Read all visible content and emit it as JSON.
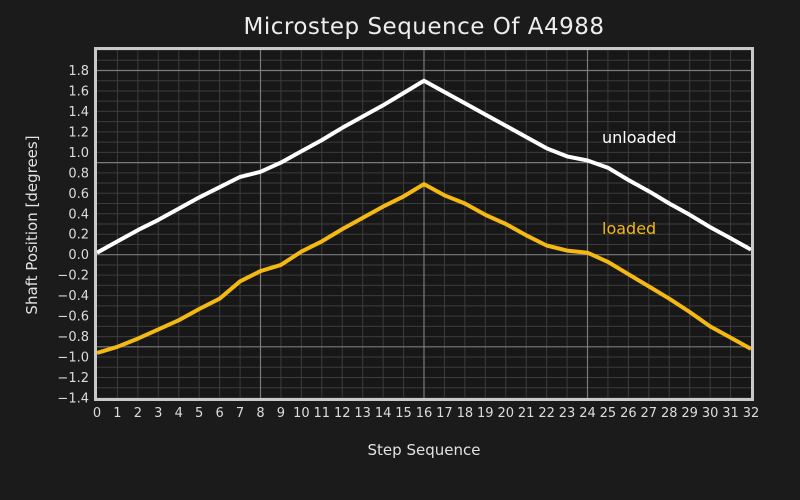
{
  "chart_data": {
    "type": "line",
    "title": "Microstep Sequence Of A4988",
    "xlabel": "Step Sequence",
    "ylabel": "Shaft Position [degrees]",
    "xlim": [
      0,
      32
    ],
    "ylim": [
      -1.4,
      2.0
    ],
    "grid": {
      "x_minor_step": 1,
      "x_major_lines": [
        8,
        16,
        24
      ],
      "y_minor_step": 0.1,
      "y_major_lines": [
        -0.9,
        0.0,
        0.9,
        1.8
      ],
      "minor_color": "#3c3c3c",
      "major_color": "#7b7b7b",
      "frame_color": "#c9c9c9"
    },
    "x_ticks": [
      0,
      1,
      2,
      3,
      4,
      5,
      6,
      7,
      8,
      9,
      10,
      11,
      12,
      13,
      14,
      15,
      16,
      17,
      18,
      19,
      20,
      21,
      22,
      23,
      24,
      25,
      26,
      27,
      28,
      29,
      30,
      31,
      32
    ],
    "x_tick_labels": [
      "0",
      "1",
      "2",
      "3",
      "4",
      "5",
      "6",
      "7",
      "8",
      "9",
      "10",
      "11",
      "12",
      "13",
      "14",
      "15",
      "16",
      "17",
      "18",
      "19",
      "20",
      "21",
      "22",
      "23",
      "24",
      "25",
      "26",
      "27",
      "28",
      "29",
      "30",
      "31",
      "32"
    ],
    "y_tick_values": [
      1.8,
      1.6,
      1.4,
      1.2,
      1.0,
      0.8,
      0.6,
      0.4,
      0.2,
      0.0,
      -0.2,
      -0.4,
      -0.6,
      -0.8,
      -1.0,
      -1.2,
      -1.4
    ],
    "y_tick_labels": [
      "1.8",
      "1.6",
      "1.4",
      "1.2",
      "1.0",
      "0.8",
      "0.6",
      "0.4",
      "0.2",
      "0.0",
      "−0.2",
      "−0.4",
      "−0.6",
      "−0.8",
      "−1.0",
      "−1.2",
      "−1.4"
    ],
    "x": [
      0,
      1,
      2,
      3,
      4,
      5,
      6,
      7,
      8,
      9,
      10,
      11,
      12,
      13,
      14,
      15,
      16,
      17,
      18,
      19,
      20,
      21,
      22,
      23,
      24,
      25,
      26,
      27,
      28,
      29,
      30,
      31,
      32
    ],
    "series": [
      {
        "name": "unloaded",
        "color": "#ffffff",
        "values": [
          0.02,
          0.13,
          0.24,
          0.34,
          0.45,
          0.56,
          0.66,
          0.76,
          0.81,
          0.9,
          1.01,
          1.12,
          1.24,
          1.35,
          1.46,
          1.58,
          1.7,
          1.59,
          1.48,
          1.37,
          1.26,
          1.15,
          1.04,
          0.96,
          0.92,
          0.85,
          0.73,
          0.62,
          0.5,
          0.39,
          0.27,
          0.16,
          0.05
        ]
      },
      {
        "name": "loaded",
        "color": "#f4b912",
        "values": [
          -0.96,
          -0.9,
          -0.82,
          -0.73,
          -0.64,
          -0.53,
          -0.43,
          -0.26,
          -0.16,
          -0.1,
          0.03,
          0.13,
          0.25,
          0.36,
          0.47,
          0.57,
          0.69,
          0.58,
          0.5,
          0.39,
          0.3,
          0.19,
          0.09,
          0.04,
          0.02,
          -0.07,
          -0.19,
          -0.31,
          -0.43,
          -0.56,
          -0.7,
          -0.81,
          -0.92
        ]
      }
    ],
    "legend_position": "inline-labels",
    "background_color": "#1b1b1b",
    "plot_background_color": "#171717",
    "text_color": "#e2e2e2"
  }
}
